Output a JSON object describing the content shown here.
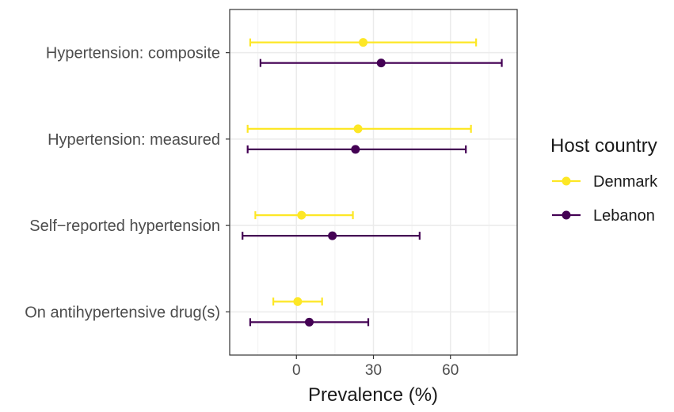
{
  "chart_data": {
    "type": "forest",
    "title": "",
    "xlabel": "Prevalence (%)",
    "ylabel": "",
    "xlim": [
      -26,
      86
    ],
    "x_ticks": [
      0,
      30,
      60
    ],
    "x_tick_labels": [
      "0",
      "30",
      "60"
    ],
    "grid": true,
    "categories": [
      "Hypertension: composite",
      "Hypertension: measured",
      "Self−reported hypertension",
      "On antihypertensive drug(s)"
    ],
    "legend": {
      "title": "Host country",
      "position": "right"
    },
    "series": [
      {
        "name": "Denmark",
        "color": "#FDE725",
        "points": [
          {
            "category": "Hypertension: composite",
            "estimate": 26,
            "lower": -18,
            "upper": 70
          },
          {
            "category": "Hypertension: measured",
            "estimate": 24,
            "lower": -19,
            "upper": 68
          },
          {
            "category": "Self−reported hypertension",
            "estimate": 2,
            "lower": -16,
            "upper": 22
          },
          {
            "category": "On antihypertensive drug(s)",
            "estimate": 0.5,
            "lower": -9,
            "upper": 10
          }
        ]
      },
      {
        "name": "Lebanon",
        "color": "#440154",
        "points": [
          {
            "category": "Hypertension: composite",
            "estimate": 33,
            "lower": -14,
            "upper": 80
          },
          {
            "category": "Hypertension: measured",
            "estimate": 23,
            "lower": -19,
            "upper": 66
          },
          {
            "category": "Self−reported hypertension",
            "estimate": 14,
            "lower": -21,
            "upper": 48
          },
          {
            "category": "On antihypertensive drug(s)",
            "estimate": 5,
            "lower": -18,
            "upper": 28
          }
        ]
      }
    ]
  }
}
